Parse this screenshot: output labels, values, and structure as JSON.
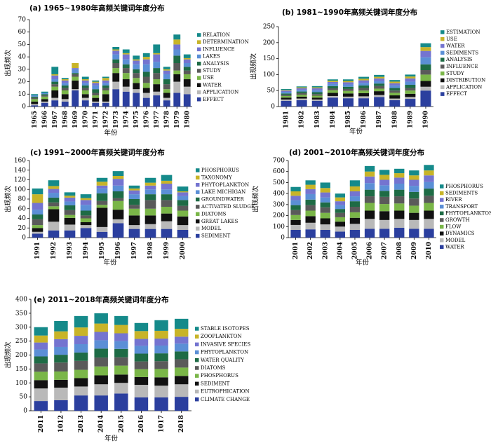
{
  "chart_data": [
    {
      "id": "a",
      "type": "bar",
      "stacked": true,
      "title": "(a) 1965~1980年高频关键词年度分布",
      "ylabel": "出现频次",
      "xlabel": "年份",
      "ylim": [
        0,
        70
      ],
      "yticks": [
        0,
        10,
        20,
        30,
        40,
        50,
        60,
        70
      ],
      "categories": [
        "1965",
        "1966",
        "1967",
        "1968",
        "1969",
        "1970",
        "1971",
        "1972",
        "1973",
        "1974",
        "1975",
        "1976",
        "1977",
        "1978",
        "1979",
        "1980"
      ],
      "series": [
        {
          "name": "EFFECT",
          "color": "#2b3f9e",
          "values": [
            1,
            3,
            5,
            4,
            13,
            5,
            3,
            3,
            14,
            12,
            11,
            7,
            9,
            5,
            11,
            10
          ]
        },
        {
          "name": "APPLICATION",
          "color": "#b9b9b9",
          "values": [
            1,
            1,
            2,
            2,
            1,
            2,
            1,
            1,
            6,
            4,
            3,
            4,
            3,
            2,
            9,
            6
          ]
        },
        {
          "name": "WATER",
          "color": "#111111",
          "values": [
            2,
            2,
            6,
            4,
            7,
            3,
            3,
            6,
            7,
            6,
            5,
            4,
            6,
            4,
            6,
            6
          ]
        },
        {
          "name": "USE",
          "color": "#7ab648",
          "values": [
            2,
            2,
            3,
            3,
            3,
            3,
            2,
            3,
            4,
            5,
            4,
            4,
            4,
            3,
            3,
            4
          ]
        },
        {
          "name": "STUDY",
          "color": "#5a5a5a",
          "values": [
            1,
            1,
            2,
            2,
            2,
            2,
            2,
            2,
            4,
            4,
            4,
            5,
            5,
            4,
            6,
            3
          ]
        },
        {
          "name": "ANALYSIS",
          "color": "#1e6b45",
          "values": [
            1,
            1,
            2,
            2,
            1,
            2,
            3,
            2,
            3,
            3,
            3,
            4,
            4,
            4,
            6,
            3
          ]
        },
        {
          "name": "LAKES",
          "color": "#5b8fd6",
          "values": [
            1,
            1,
            2,
            2,
            3,
            2,
            3,
            2,
            4,
            4,
            4,
            6,
            5,
            4,
            5,
            3
          ]
        },
        {
          "name": "INFLUENCE",
          "color": "#7474d0",
          "values": [
            0,
            0,
            3,
            2,
            1,
            2,
            2,
            2,
            3,
            4,
            3,
            4,
            6,
            3,
            4,
            3
          ]
        },
        {
          "name": "DETERMINATION",
          "color": "#c8b428",
          "values": [
            0,
            0,
            1,
            1,
            4,
            1,
            1,
            2,
            1,
            1,
            1,
            2,
            1,
            1,
            4,
            1
          ]
        },
        {
          "name": "RELATION",
          "color": "#158a8a",
          "values": [
            1,
            1,
            6,
            1,
            0,
            2,
            1,
            1,
            2,
            3,
            3,
            3,
            7,
            2,
            4,
            3
          ]
        }
      ]
    },
    {
      "id": "b",
      "type": "bar",
      "stacked": true,
      "title": "(b) 1981~1990年高频关键词年度分布",
      "ylabel": "出现频次",
      "xlabel": "年份",
      "ylim": [
        0,
        250
      ],
      "yticks": [
        0,
        50,
        100,
        150,
        200,
        250
      ],
      "categories": [
        "1981",
        "1982",
        "1983",
        "1984",
        "1985",
        "1986",
        "1987",
        "1988",
        "1989",
        "1990"
      ],
      "series": [
        {
          "name": "EFFECT",
          "color": "#2b3f9e",
          "values": [
            18,
            20,
            18,
            28,
            26,
            26,
            30,
            20,
            24,
            50
          ]
        },
        {
          "name": "APPLICATION",
          "color": "#b9b9b9",
          "values": [
            4,
            5,
            4,
            5,
            5,
            6,
            6,
            5,
            6,
            12
          ]
        },
        {
          "name": "DISTRIBUTION",
          "color": "#111111",
          "values": [
            6,
            6,
            6,
            10,
            10,
            10,
            12,
            10,
            10,
            18
          ]
        },
        {
          "name": "STUDY",
          "color": "#7ab648",
          "values": [
            5,
            6,
            6,
            8,
            8,
            8,
            8,
            8,
            10,
            20
          ]
        },
        {
          "name": "INFLUENCE",
          "color": "#5a5a5a",
          "values": [
            4,
            5,
            5,
            6,
            6,
            8,
            8,
            7,
            8,
            14
          ]
        },
        {
          "name": "ANALYSIS",
          "color": "#1e6b45",
          "values": [
            4,
            5,
            6,
            7,
            7,
            8,
            8,
            8,
            10,
            18
          ]
        },
        {
          "name": "SEDIMENTS",
          "color": "#5b8fd6",
          "values": [
            5,
            5,
            6,
            7,
            7,
            8,
            8,
            8,
            10,
            22
          ]
        },
        {
          "name": "WATER",
          "color": "#7474d0",
          "values": [
            4,
            5,
            6,
            6,
            7,
            8,
            8,
            7,
            10,
            20
          ]
        },
        {
          "name": "USE",
          "color": "#c8b428",
          "values": [
            2,
            3,
            3,
            4,
            4,
            5,
            5,
            5,
            6,
            12
          ]
        },
        {
          "name": "ESTIMATION",
          "color": "#158a8a",
          "values": [
            3,
            3,
            4,
            4,
            5,
            6,
            6,
            5,
            6,
            12
          ]
        }
      ]
    },
    {
      "id": "c",
      "type": "bar",
      "stacked": true,
      "title": "(c) 1991~2000年高频关键词年度分布",
      "ylabel": "出现频次",
      "xlabel": "年份",
      "ylim": [
        0,
        160
      ],
      "yticks": [
        0,
        20,
        40,
        60,
        80,
        100,
        120,
        140,
        160
      ],
      "categories": [
        "1991",
        "1992",
        "1993",
        "1994",
        "1995",
        "1996",
        "1997",
        "1998",
        "1999",
        "2000"
      ],
      "series": [
        {
          "name": "SEDIMENT",
          "color": "#2b3f9e",
          "values": [
            8,
            15,
            15,
            20,
            12,
            30,
            18,
            18,
            18,
            16
          ]
        },
        {
          "name": "MODEL",
          "color": "#b9b9b9",
          "values": [
            4,
            18,
            12,
            6,
            10,
            8,
            8,
            10,
            16,
            10
          ]
        },
        {
          "name": "GREAT LAKES",
          "color": "#111111",
          "values": [
            8,
            26,
            14,
            6,
            40,
            20,
            20,
            18,
            16,
            18
          ]
        },
        {
          "name": "DIATOMS",
          "color": "#7ab648",
          "values": [
            6,
            6,
            6,
            8,
            6,
            18,
            14,
            14,
            14,
            12
          ]
        },
        {
          "name": "ACTIVATED SLUDGE",
          "color": "#5a5a5a",
          "values": [
            12,
            8,
            10,
            6,
            8,
            6,
            8,
            18,
            14,
            10
          ]
        },
        {
          "name": "GROUNDWATER",
          "color": "#1e6b45",
          "values": [
            10,
            10,
            10,
            10,
            16,
            14,
            12,
            12,
            12,
            12
          ]
        },
        {
          "name": "LAKE MICHIGAN",
          "color": "#5b8fd6",
          "values": [
            10,
            10,
            8,
            12,
            10,
            12,
            10,
            10,
            10,
            8
          ]
        },
        {
          "name": "PHYTOPLANKTON",
          "color": "#7474d0",
          "values": [
            14,
            8,
            8,
            10,
            6,
            14,
            8,
            8,
            12,
            8
          ]
        },
        {
          "name": "TAXONOMY",
          "color": "#c8b428",
          "values": [
            18,
            6,
            4,
            4,
            8,
            6,
            4,
            6,
            6,
            2
          ]
        },
        {
          "name": "PHOSPHORUS",
          "color": "#158a8a",
          "values": [
            12,
            12,
            7,
            8,
            8,
            10,
            6,
            10,
            12,
            10
          ]
        }
      ]
    },
    {
      "id": "d",
      "type": "bar",
      "stacked": true,
      "title": "(d) 2001~2010年高频关键词年度分布",
      "ylabel": "出现频次",
      "xlabel": "年份",
      "ylim": [
        0,
        700
      ],
      "yticks": [
        0,
        100,
        200,
        300,
        400,
        500,
        600,
        700
      ],
      "categories": [
        "2001",
        "2002",
        "2003",
        "2004",
        "2005",
        "2006",
        "2007",
        "2008",
        "2009",
        "2010"
      ],
      "series": [
        {
          "name": "WATER",
          "color": "#2b3f9e",
          "values": [
            70,
            75,
            70,
            55,
            70,
            80,
            80,
            90,
            80,
            80
          ]
        },
        {
          "name": "MODEL",
          "color": "#b9b9b9",
          "values": [
            45,
            60,
            50,
            45,
            55,
            90,
            80,
            80,
            80,
            90
          ]
        },
        {
          "name": "DYNAMICS",
          "color": "#111111",
          "values": [
            45,
            60,
            55,
            45,
            55,
            75,
            80,
            75,
            65,
            75
          ]
        },
        {
          "name": "FLOW",
          "color": "#7ab648",
          "values": [
            45,
            50,
            50,
            40,
            50,
            70,
            65,
            65,
            65,
            70
          ]
        },
        {
          "name": "GROWTH",
          "color": "#5a5a5a",
          "values": [
            45,
            50,
            50,
            40,
            50,
            60,
            65,
            65,
            65,
            65
          ]
        },
        {
          "name": "PHYTOPLANKTON",
          "color": "#1e6b45",
          "values": [
            45,
            50,
            45,
            35,
            50,
            60,
            55,
            60,
            60,
            65
          ]
        },
        {
          "name": "TRANSPORT",
          "color": "#5b8fd6",
          "values": [
            45,
            50,
            45,
            35,
            45,
            60,
            50,
            55,
            55,
            60
          ]
        },
        {
          "name": "RIVER",
          "color": "#7474d0",
          "values": [
            40,
            45,
            45,
            35,
            45,
            60,
            50,
            55,
            55,
            60
          ]
        },
        {
          "name": "SEDIMENTS",
          "color": "#c8b428",
          "values": [
            40,
            40,
            40,
            35,
            45,
            45,
            45,
            40,
            40,
            45
          ]
        },
        {
          "name": "PHOSPHORUS",
          "color": "#158a8a",
          "values": [
            40,
            40,
            50,
            35,
            55,
            50,
            45,
            40,
            45,
            50
          ]
        }
      ]
    },
    {
      "id": "e",
      "type": "bar",
      "stacked": true,
      "title": "(e) 2011~2018年高频关键词年度分布",
      "ylabel": "出现频次",
      "xlabel": "年份",
      "ylim": [
        0,
        400
      ],
      "yticks": [
        0,
        50,
        100,
        150,
        200,
        250,
        300,
        350,
        400
      ],
      "categories": [
        "2011",
        "1012",
        "2013",
        "2014",
        "2015",
        "2016",
        "1017",
        "2018"
      ],
      "series": [
        {
          "name": "CLIMATE CHANGE",
          "color": "#2b3f9e",
          "values": [
            35,
            38,
            55,
            55,
            62,
            48,
            48,
            50
          ]
        },
        {
          "name": "EUTROPHICATION",
          "color": "#b9b9b9",
          "values": [
            45,
            45,
            32,
            40,
            38,
            45,
            42,
            45
          ]
        },
        {
          "name": "SEDIMENT",
          "color": "#111111",
          "values": [
            30,
            28,
            30,
            32,
            30,
            28,
            30,
            30
          ]
        },
        {
          "name": "PHOSPHORUS",
          "color": "#7ab648",
          "values": [
            30,
            30,
            30,
            32,
            32,
            28,
            30,
            30
          ]
        },
        {
          "name": "DIATOMS",
          "color": "#5a5a5a",
          "values": [
            30,
            32,
            32,
            32,
            30,
            28,
            28,
            30
          ]
        },
        {
          "name": "WATER QUALITY",
          "color": "#1e6b45",
          "values": [
            25,
            28,
            30,
            32,
            30,
            28,
            28,
            28
          ]
        },
        {
          "name": "PHYTOPLANKTON",
          "color": "#5b8fd6",
          "values": [
            25,
            28,
            30,
            30,
            28,
            28,
            28,
            28
          ]
        },
        {
          "name": "INVASIVE SPECIES",
          "color": "#7474d0",
          "values": [
            25,
            28,
            30,
            30,
            28,
            25,
            25,
            25
          ]
        },
        {
          "name": "ZOOPLANKTON",
          "color": "#c8b428",
          "values": [
            25,
            28,
            30,
            30,
            30,
            28,
            28,
            28
          ]
        },
        {
          "name": "STABLE ISOTOPES",
          "color": "#158a8a",
          "values": [
            30,
            37,
            41,
            37,
            32,
            29,
            38,
            36
          ]
        }
      ]
    }
  ]
}
